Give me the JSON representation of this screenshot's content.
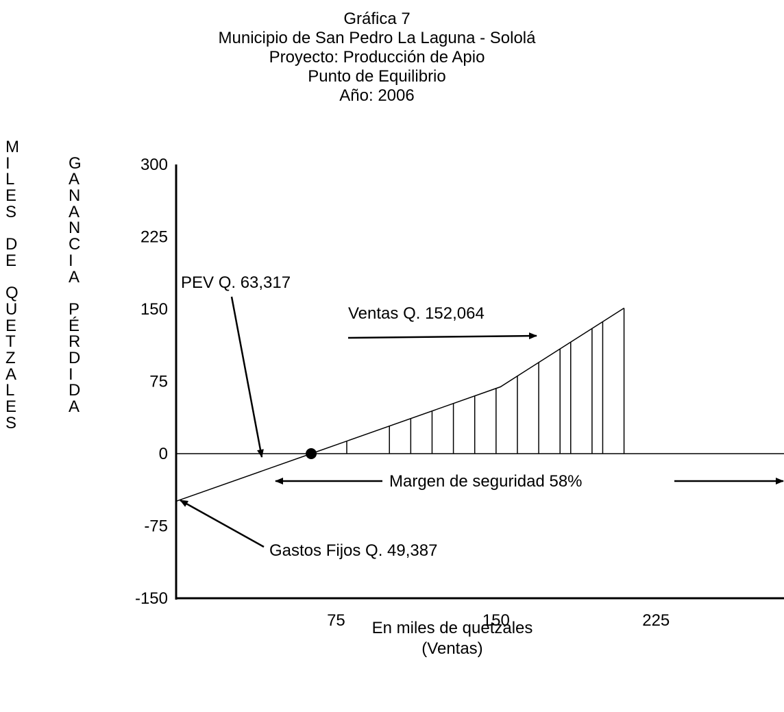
{
  "titles": [
    "Gráfica 7",
    "Municipio de San Pedro La Laguna - Sololá",
    "Proyecto: Producción de Apio",
    "Punto de Equilibrio",
    "Año: 2006"
  ],
  "ylabel_outer": [
    "M",
    "I",
    "L",
    "E",
    "S",
    "",
    "D",
    "E",
    "",
    "Q",
    "U",
    "E",
    "T",
    "Z",
    "A",
    "L",
    "E",
    "S"
  ],
  "ylabel_inner": [
    "",
    "G",
    "A",
    "N",
    "A",
    "N",
    "C",
    "I",
    "A",
    "",
    "P",
    "É",
    "R",
    "D",
    "I",
    "D",
    "A"
  ],
  "xlabel": [
    "En miles de quetzales",
    "(Ventas)"
  ],
  "chart_data": {
    "type": "line",
    "title": "Punto de Equilibrio",
    "xlabel": "En miles de quetzales (Ventas)",
    "ylabel": "MILES DE QUETZALES - GANANCIA / PÉRDIDA",
    "x_ticks": [
      75,
      150,
      225
    ],
    "y_ticks": [
      300,
      225,
      150,
      75,
      0,
      -75,
      -150
    ],
    "xlim": [
      0,
      285
    ],
    "ylim": [
      -150,
      300
    ],
    "series": [
      {
        "x": [
          0,
          63.317,
          152.064,
          210
        ],
        "y": [
          -49.387,
          0,
          69.3,
          151
        ]
      }
    ],
    "hatch_lines_x": [
      80,
      100,
      110,
      120,
      130,
      140,
      150,
      160,
      170,
      180,
      185,
      195,
      200,
      210
    ],
    "grid": false,
    "annotations": {
      "pev": "PEV  Q.  63,317",
      "ventas": "Ventas Q. 152,064",
      "margen": "Margen de seguridad 58%",
      "gastos": "Gastos Fijos Q. 49,387"
    }
  }
}
